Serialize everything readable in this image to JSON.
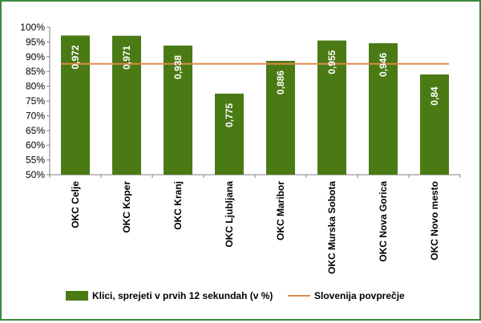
{
  "chart_data": {
    "type": "bar",
    "categories": [
      "OKC Celje",
      "OKC Koper",
      "OKC Kranj",
      "OKC Ljubljana",
      "OKC Maribor",
      "OKC Murska Sobota",
      "OKC Nova Gorica",
      "OKC Novo mesto"
    ],
    "series": [
      {
        "name": "Klici, sprejeti v prvih 12 sekundah (v %)",
        "values": [
          0.972,
          0.971,
          0.938,
          0.775,
          0.886,
          0.955,
          0.946,
          0.84
        ],
        "data_labels": [
          "0,972",
          "0,971",
          "0,938",
          "0,775",
          "0,886",
          "0,955",
          "0,946",
          "0,84"
        ],
        "color": "#4a7a14"
      }
    ],
    "reference_line": {
      "name": "Slovenija povprečje",
      "value": 0.876,
      "color": "#e08a4a"
    },
    "ylim": [
      0.5,
      1.0
    ],
    "yticks": [
      {
        "value": 1.0,
        "label": "100%"
      },
      {
        "value": 0.95,
        "label": "95%"
      },
      {
        "value": 0.9,
        "label": "90%"
      },
      {
        "value": 0.85,
        "label": "85%"
      },
      {
        "value": 0.8,
        "label": "80%"
      },
      {
        "value": 0.75,
        "label": "75%"
      },
      {
        "value": 0.7,
        "label": "70%"
      },
      {
        "value": 0.65,
        "label": "65%"
      },
      {
        "value": 0.6,
        "label": "60%"
      },
      {
        "value": 0.55,
        "label": "55%"
      },
      {
        "value": 0.5,
        "label": "50%"
      }
    ],
    "grid": false,
    "legend_position": "bottom",
    "colors": {
      "frame": "#3b8a3b",
      "axis": "#808080"
    }
  }
}
